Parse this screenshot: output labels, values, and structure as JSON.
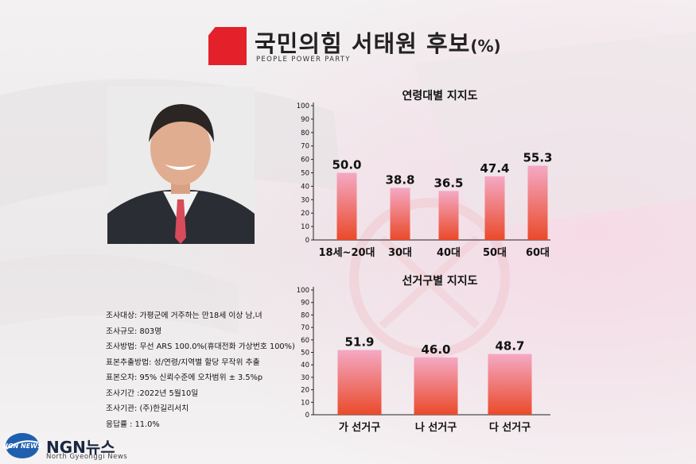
{
  "header": {
    "title": "국민의힘 서태원 후보",
    "unit": "(%)",
    "party_name": "PEOPLE POWER PARTY"
  },
  "colors": {
    "brand_red": "#e4202b",
    "bar_top": "#f4a9c4",
    "bar_bottom": "#ea4a2a"
  },
  "info": {
    "lines": [
      "조사대상: 가평군에 거주하는 만18세 이상 남,녀",
      "조사규모: 803명",
      "조사방법: 무선 ARS 100.0%(휴대전화 가상번호 100%)",
      "표본추출방법: 성/연령/지역별 할당 무작위 추출",
      "표본오차: 95% 신뢰수준에 오차범위 ± 3.5%p",
      "조사기간 :2022년 5월10일",
      "조사기관: (주)한길리서치",
      "응답률 : 11.0%"
    ]
  },
  "footer": {
    "logo_text": "NGN NEWS",
    "brand": "NGN뉴스",
    "brand_sub": "North Gyeonggi News"
  },
  "chart_data": [
    {
      "type": "bar",
      "title": "연령대별 지지도",
      "categories": [
        "18세~20대",
        "30대",
        "40대",
        "50대",
        "60대"
      ],
      "values": [
        50.0,
        38.8,
        36.5,
        47.4,
        55.3
      ],
      "labels": [
        "50.0",
        "38.8",
        "36.5",
        "47.4",
        "55.3"
      ],
      "ylim": [
        0,
        100
      ],
      "yticks": [
        0,
        10,
        20,
        30,
        40,
        50,
        60,
        70,
        80,
        90,
        100
      ],
      "xlabel": "",
      "ylabel": "",
      "grid": false
    },
    {
      "type": "bar",
      "title": "선거구별 지지도",
      "categories": [
        "가 선거구",
        "나 선거구",
        "다 선거구"
      ],
      "values": [
        51.9,
        46.0,
        48.7
      ],
      "labels": [
        "51.9",
        "46.0",
        "48.7"
      ],
      "ylim": [
        0,
        100
      ],
      "yticks": [
        0,
        10,
        20,
        30,
        40,
        50,
        60,
        70,
        80,
        90,
        100
      ],
      "xlabel": "",
      "ylabel": "",
      "grid": false
    }
  ]
}
